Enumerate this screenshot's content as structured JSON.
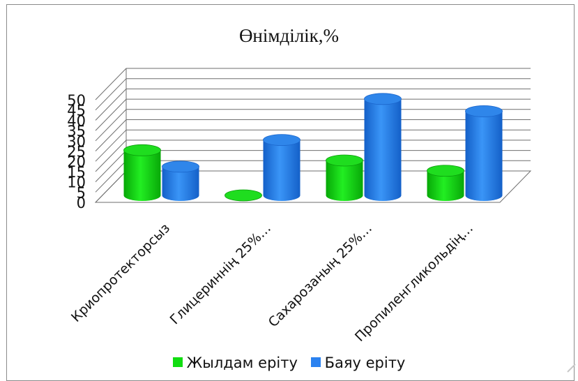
{
  "chart_data": {
    "type": "bar",
    "title": "Өнімділік,%",
    "categories": [
      "Криопротекторсыз",
      "Глицериннің 25%…",
      "Сахарозаның 25%…",
      "Пропиленгликольдің…"
    ],
    "series": [
      {
        "name": "Жылдам еріту",
        "values": [
          22,
          0,
          17,
          12
        ],
        "color": "#11dd11"
      },
      {
        "name": "Баяу еріту",
        "values": [
          14,
          27,
          47,
          41
        ],
        "color": "#2b82f0"
      }
    ],
    "ylim": [
      0,
      50
    ],
    "yticks": [
      0,
      5,
      10,
      15,
      20,
      25,
      30,
      35,
      40,
      45,
      50
    ],
    "xlabel": "",
    "ylabel": "",
    "grid": true,
    "legend_position": "bottom"
  }
}
